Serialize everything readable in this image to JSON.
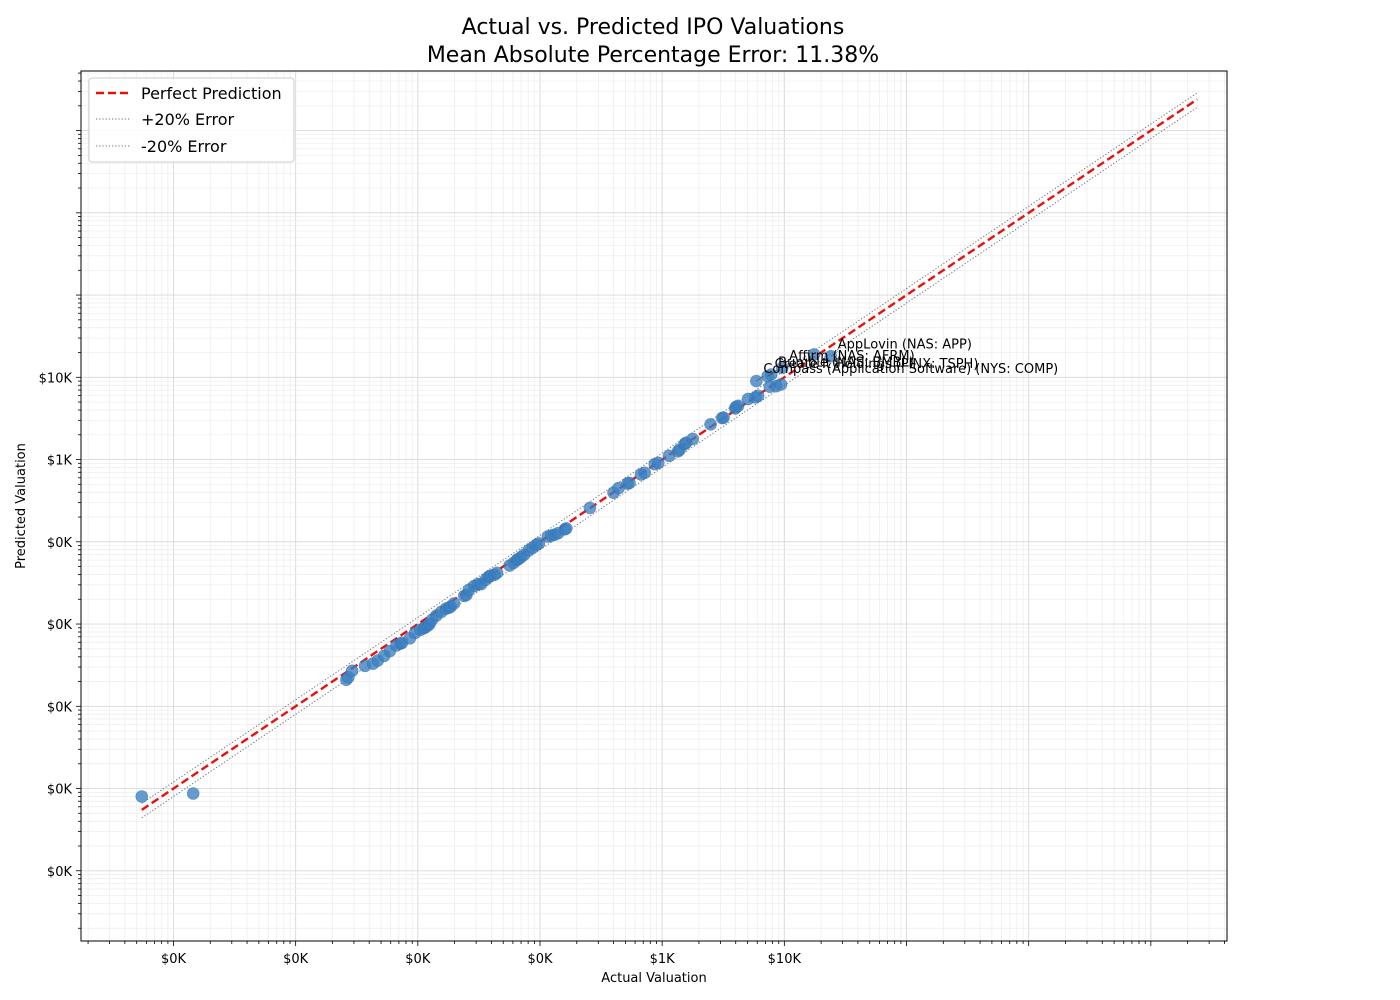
{
  "chart_data": {
    "type": "scatter",
    "title": "Actual vs. Predicted IPO Valuations",
    "subtitle": "Mean Absolute Percentage Error: 11.38%",
    "xlabel": "Actual Valuation",
    "ylabel": "Predicted Valuation",
    "x_scale": "log",
    "y_scale": "log",
    "xlim": [
      1.75e-05,
      42000
    ],
    "ylim": [
      1.4e-06,
      53000
    ],
    "x_ticks": [
      {
        "value": 0.0001,
        "label": "$0K"
      },
      {
        "value": 0.001,
        "label": "$0K"
      },
      {
        "value": 0.01,
        "label": "$0K"
      },
      {
        "value": 0.1,
        "label": "$0K"
      },
      {
        "value": 1,
        "label": "$1K"
      },
      {
        "value": 10,
        "label": "$10K"
      }
    ],
    "y_ticks": [
      {
        "value": 1e-05,
        "label": "$0K"
      },
      {
        "value": 0.0001,
        "label": "$0K"
      },
      {
        "value": 0.001,
        "label": "$0K"
      },
      {
        "value": 0.01,
        "label": "$0K"
      },
      {
        "value": 0.1,
        "label": "$0K"
      },
      {
        "value": 1,
        "label": "$1K"
      },
      {
        "value": 10,
        "label": "$10K"
      }
    ],
    "grid": true,
    "legend_position": "top-left",
    "legend": [
      {
        "label": "Perfect Prediction",
        "style": "dashed",
        "color": "#e8110f"
      },
      {
        "label": "+20% Error",
        "style": "dotted",
        "color": "#6e6e6e"
      },
      {
        "label": "-20% Error",
        "style": "dotted",
        "color": "#6e6e6e"
      }
    ],
    "reference_lines": {
      "x_range": [
        5.5e-05,
        24000
      ],
      "perfect_color": "#e8110f",
      "error_color": "#6e6e6e",
      "error_factor": 0.2
    },
    "point_color": "#3b7fc0",
    "points": [
      {
        "x": 5.5e-05,
        "y": 8e-05
      },
      {
        "x": 0.000145,
        "y": 8.7e-05
      },
      {
        "x": 0.0026,
        "y": 0.0021
      },
      {
        "x": 0.0027,
        "y": 0.00225
      },
      {
        "x": 0.0029,
        "y": 0.0027
      },
      {
        "x": 0.0037,
        "y": 0.0031
      },
      {
        "x": 0.0043,
        "y": 0.0033
      },
      {
        "x": 0.0047,
        "y": 0.0036
      },
      {
        "x": 0.0053,
        "y": 0.0041
      },
      {
        "x": 0.0059,
        "y": 0.0047
      },
      {
        "x": 0.0067,
        "y": 0.0055
      },
      {
        "x": 0.0072,
        "y": 0.0058
      },
      {
        "x": 0.0074,
        "y": 0.0059
      },
      {
        "x": 0.0086,
        "y": 0.0067
      },
      {
        "x": 0.0095,
        "y": 0.0078
      },
      {
        "x": 0.0105,
        "y": 0.0085
      },
      {
        "x": 0.0112,
        "y": 0.0089
      },
      {
        "x": 0.0116,
        "y": 0.0092
      },
      {
        "x": 0.0122,
        "y": 0.0097
      },
      {
        "x": 0.0125,
        "y": 0.0101
      },
      {
        "x": 0.0131,
        "y": 0.0113
      },
      {
        "x": 0.0142,
        "y": 0.0127
      },
      {
        "x": 0.0156,
        "y": 0.0141
      },
      {
        "x": 0.017,
        "y": 0.0154
      },
      {
        "x": 0.018,
        "y": 0.0158
      },
      {
        "x": 0.0186,
        "y": 0.0163
      },
      {
        "x": 0.0198,
        "y": 0.0178
      },
      {
        "x": 0.024,
        "y": 0.022
      },
      {
        "x": 0.025,
        "y": 0.0226
      },
      {
        "x": 0.0262,
        "y": 0.026
      },
      {
        "x": 0.029,
        "y": 0.029
      },
      {
        "x": 0.031,
        "y": 0.0306
      },
      {
        "x": 0.033,
        "y": 0.0306
      },
      {
        "x": 0.036,
        "y": 0.0347
      },
      {
        "x": 0.038,
        "y": 0.0375
      },
      {
        "x": 0.0392,
        "y": 0.0386
      },
      {
        "x": 0.0425,
        "y": 0.0398
      },
      {
        "x": 0.0445,
        "y": 0.0419
      },
      {
        "x": 0.0565,
        "y": 0.0515
      },
      {
        "x": 0.061,
        "y": 0.0556
      },
      {
        "x": 0.065,
        "y": 0.0605
      },
      {
        "x": 0.0665,
        "y": 0.0615
      },
      {
        "x": 0.07,
        "y": 0.065
      },
      {
        "x": 0.074,
        "y": 0.0695
      },
      {
        "x": 0.081,
        "y": 0.079
      },
      {
        "x": 0.087,
        "y": 0.0845
      },
      {
        "x": 0.0935,
        "y": 0.092
      },
      {
        "x": 0.098,
        "y": 0.0955
      },
      {
        "x": 0.116,
        "y": 0.116
      },
      {
        "x": 0.124,
        "y": 0.119
      },
      {
        "x": 0.132,
        "y": 0.122
      },
      {
        "x": 0.141,
        "y": 0.1275
      },
      {
        "x": 0.16,
        "y": 0.142
      },
      {
        "x": 0.164,
        "y": 0.1455
      },
      {
        "x": 0.256,
        "y": 0.258
      },
      {
        "x": 0.4,
        "y": 0.395
      },
      {
        "x": 0.44,
        "y": 0.45
      },
      {
        "x": 0.52,
        "y": 0.51
      },
      {
        "x": 0.54,
        "y": 0.52
      },
      {
        "x": 0.67,
        "y": 0.66
      },
      {
        "x": 0.72,
        "y": 0.69
      },
      {
        "x": 0.87,
        "y": 0.88
      },
      {
        "x": 0.93,
        "y": 0.91
      },
      {
        "x": 1.14,
        "y": 1.11
      },
      {
        "x": 1.35,
        "y": 1.26
      },
      {
        "x": 1.39,
        "y": 1.32
      },
      {
        "x": 1.53,
        "y": 1.55
      },
      {
        "x": 1.57,
        "y": 1.6
      },
      {
        "x": 1.78,
        "y": 1.78
      },
      {
        "x": 2.49,
        "y": 2.68
      },
      {
        "x": 3.1,
        "y": 3.2
      },
      {
        "x": 3.18,
        "y": 3.23
      },
      {
        "x": 3.96,
        "y": 4.18
      },
      {
        "x": 4.02,
        "y": 4.36
      },
      {
        "x": 4.18,
        "y": 4.5
      },
      {
        "x": 5.05,
        "y": 5.45
      },
      {
        "x": 5.8,
        "y": 5.7
      },
      {
        "x": 6.1,
        "y": 5.95
      },
      {
        "x": 5.9,
        "y": 9.0
      },
      {
        "x": 7.3,
        "y": 10.3
      },
      {
        "x": 7.8,
        "y": 10.8
      },
      {
        "x": 7.6,
        "y": 7.7
      },
      {
        "x": 8.6,
        "y": 7.8
      },
      {
        "x": 9.4,
        "y": 8.2
      },
      {
        "x": 9.6,
        "y": 13.0
      },
      {
        "x": 17.5,
        "y": 19.0
      },
      {
        "x": 24.0,
        "y": 18.0
      }
    ],
    "annotations": [
      {
        "text": "AppLovin (NAS: APP)",
        "x": 24.0,
        "y": 18.0
      },
      {
        "text": "Affirm (NAS: AFRM)",
        "x": 9.6,
        "y": 13.0
      },
      {
        "text": "Bumble (NAS: BMBL)",
        "x": 7.8,
        "y": 10.8
      },
      {
        "text": "Create It Holdings (PINX: TSPH)",
        "x": 7.3,
        "y": 10.3
      },
      {
        "text": "Compass (Application Software) (NYS: COMP)",
        "x": 5.9,
        "y": 9.0
      }
    ]
  }
}
